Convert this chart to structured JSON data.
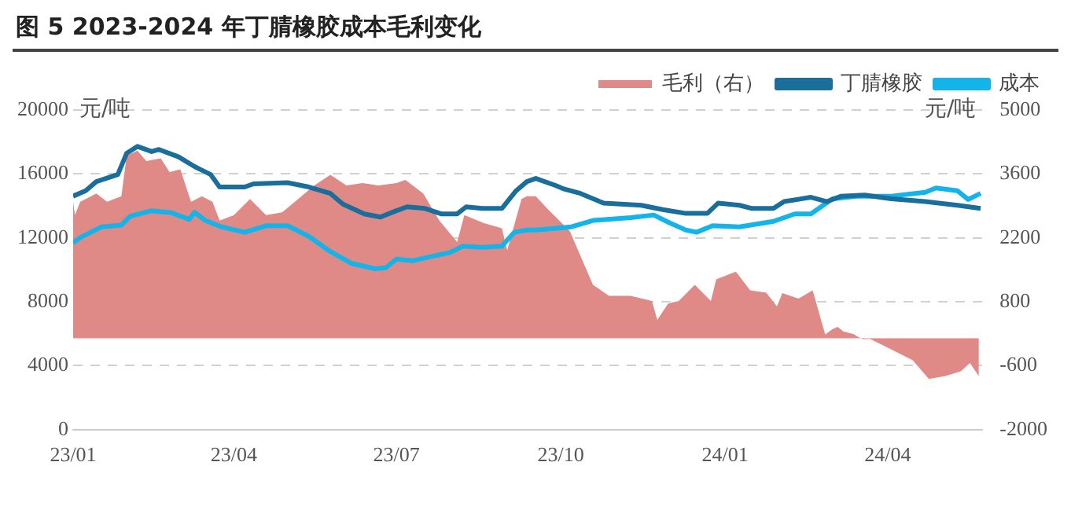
{
  "chart_data": {
    "type": "line",
    "title": "图 5 2023-2024 年丁腈橡胶成本毛利变化",
    "ylabel": "元/吨",
    "y2label": "元/吨",
    "xlim": [
      "2023-01-01",
      "2024-05-24"
    ],
    "xticks": [
      {
        "value": "2023-01-01",
        "label": "23/01"
      },
      {
        "value": "2023-04-01",
        "label": "23/04"
      },
      {
        "value": "2023-07-01",
        "label": "23/07"
      },
      {
        "value": "2023-10-01",
        "label": "23/10"
      },
      {
        "value": "2024-01-01",
        "label": "24/01"
      },
      {
        "value": "2024-04-01",
        "label": "24/04"
      }
    ],
    "ylim": [
      0,
      20000
    ],
    "yticks": [
      0,
      4000,
      8000,
      12000,
      16000,
      20000
    ],
    "y2lim": [
      -2000,
      5000
    ],
    "y2ticks": [
      -2000,
      -600,
      800,
      2200,
      3600,
      5000
    ],
    "grid": "y",
    "legend": "top right",
    "marker": "none",
    "line_style": "solid",
    "series": [
      {
        "name": "毛利（右）",
        "type": "area",
        "axis": "y2",
        "color": "#e08a88",
        "x": [
          "2023-01-01",
          "2023-01-02",
          "2023-01-05",
          "2023-01-14",
          "2023-01-20",
          "2023-01-28",
          "2023-01-31",
          "2023-02-06",
          "2023-02-11",
          "2023-02-19",
          "2023-02-24",
          "2023-03-02",
          "2023-03-08",
          "2023-03-14",
          "2023-03-20",
          "2023-03-24",
          "2023-04-01",
          "2023-04-10",
          "2023-04-19",
          "2023-04-28",
          "2023-05-07",
          "2023-05-16",
          "2023-05-25",
          "2023-06-03",
          "2023-06-12",
          "2023-06-21",
          "2023-07-01",
          "2023-07-06",
          "2023-07-16",
          "2023-07-25",
          "2023-08-04",
          "2023-08-08",
          "2023-08-19",
          "2023-08-29",
          "2023-09-01",
          "2023-09-09",
          "2023-09-12",
          "2023-09-17",
          "2023-09-24",
          "2023-10-06",
          "2023-10-19",
          "2023-10-28",
          "2023-11-09",
          "2023-11-21",
          "2023-11-24",
          "2023-11-30",
          "2023-12-06",
          "2023-12-15",
          "2023-12-24",
          "2023-12-27",
          "2024-01-07",
          "2024-01-15",
          "2024-01-24",
          "2024-01-30",
          "2024-02-02",
          "2024-02-11",
          "2024-02-19",
          "2024-02-26",
          "2024-03-01",
          "2024-03-04",
          "2024-03-07",
          "2024-03-10",
          "2024-03-13",
          "2024-03-15",
          "2024-03-18",
          "2024-03-22",
          "2024-04-03",
          "2024-04-15",
          "2024-04-24",
          "2024-05-03",
          "2024-05-12",
          "2024-05-17",
          "2024-05-22"
        ],
        "values": [
          2990,
          2700,
          2990,
          3170,
          2990,
          3110,
          4000,
          4110,
          3880,
          3940,
          3640,
          3700,
          2990,
          3110,
          2990,
          2580,
          2700,
          3050,
          2700,
          2760,
          3050,
          3350,
          3580,
          3350,
          3400,
          3350,
          3400,
          3470,
          3170,
          2580,
          2110,
          2700,
          2520,
          2410,
          1930,
          3050,
          3110,
          3110,
          2820,
          2350,
          1170,
          930,
          930,
          820,
          400,
          760,
          820,
          1170,
          820,
          1290,
          1460,
          1050,
          1000,
          700,
          990,
          870,
          1050,
          85,
          200,
          250,
          150,
          120,
          90,
          40,
          -20,
          -10,
          -245,
          -480,
          -890,
          -830,
          -720,
          -540,
          -830
        ]
      },
      {
        "name": "丁腈橡胶",
        "type": "line",
        "color": "#1a6e9c",
        "x": [
          "2023-01-01",
          "2023-01-08",
          "2023-01-14",
          "2023-01-26",
          "2023-01-31",
          "2023-02-06",
          "2023-02-14",
          "2023-02-18",
          "2023-03-01",
          "2023-03-10",
          "2023-03-19",
          "2023-03-24",
          "2023-04-07",
          "2023-04-12",
          "2023-05-01",
          "2023-05-13",
          "2023-05-25",
          "2023-06-01",
          "2023-06-13",
          "2023-06-22",
          "2023-07-01",
          "2023-07-07",
          "2023-07-17",
          "2023-07-26",
          "2023-08-04",
          "2023-08-09",
          "2023-08-18",
          "2023-08-29",
          "2023-09-06",
          "2023-09-12",
          "2023-09-17",
          "2023-09-28",
          "2023-10-03",
          "2023-10-12",
          "2023-10-25",
          "2023-11-15",
          "2023-11-27",
          "2023-12-10",
          "2023-12-22",
          "2023-12-28",
          "2024-01-09",
          "2024-01-16",
          "2024-01-28",
          "2024-02-03",
          "2024-02-18",
          "2024-02-27",
          "2024-03-06",
          "2024-03-19",
          "2024-04-03",
          "2024-04-22",
          "2024-05-10",
          "2024-05-23"
        ],
        "values": [
          14610,
          14950,
          15520,
          15960,
          17300,
          17720,
          17400,
          17530,
          17070,
          16460,
          15960,
          15180,
          15180,
          15380,
          15450,
          15180,
          14780,
          14110,
          13500,
          13300,
          13700,
          13940,
          13840,
          13500,
          13500,
          13940,
          13840,
          13840,
          14950,
          15520,
          15720,
          15280,
          15050,
          14780,
          14170,
          14040,
          13770,
          13530,
          13530,
          14170,
          14040,
          13840,
          13840,
          14270,
          14540,
          14270,
          14610,
          14680,
          14440,
          14270,
          14040,
          13840
        ]
      },
      {
        "name": "成本",
        "type": "line",
        "color": "#12b4ea",
        "x": [
          "2023-01-01",
          "2023-01-05",
          "2023-01-17",
          "2023-01-28",
          "2023-02-02",
          "2023-02-14",
          "2023-02-25",
          "2023-03-07",
          "2023-03-10",
          "2023-03-16",
          "2023-03-25",
          "2023-04-07",
          "2023-04-19",
          "2023-05-01",
          "2023-05-13",
          "2023-05-25",
          "2023-06-06",
          "2023-06-19",
          "2023-06-25",
          "2023-07-01",
          "2023-07-10",
          "2023-07-19",
          "2023-07-31",
          "2023-08-07",
          "2023-08-18",
          "2023-08-29",
          "2023-09-05",
          "2023-09-12",
          "2023-09-17",
          "2023-10-07",
          "2023-10-19",
          "2023-11-09",
          "2023-11-22",
          "2023-12-01",
          "2023-12-10",
          "2023-12-16",
          "2023-12-25",
          "2024-01-09",
          "2024-01-28",
          "2024-02-09",
          "2024-02-18",
          "2024-03-01",
          "2024-03-16",
          "2024-04-03",
          "2024-04-22",
          "2024-04-28",
          "2024-05-10",
          "2024-05-16",
          "2024-05-23"
        ],
        "values": [
          11690,
          12020,
          12690,
          12800,
          13360,
          13700,
          13570,
          13160,
          13600,
          13090,
          12690,
          12350,
          12760,
          12760,
          12090,
          11140,
          10400,
          10070,
          10130,
          10670,
          10570,
          10800,
          11080,
          11480,
          11410,
          11480,
          12350,
          12490,
          12490,
          12690,
          13090,
          13260,
          13430,
          12930,
          12490,
          12350,
          12760,
          12690,
          13030,
          13500,
          13500,
          14440,
          14610,
          14610,
          14850,
          15120,
          14950,
          14400,
          14780
        ]
      }
    ]
  }
}
